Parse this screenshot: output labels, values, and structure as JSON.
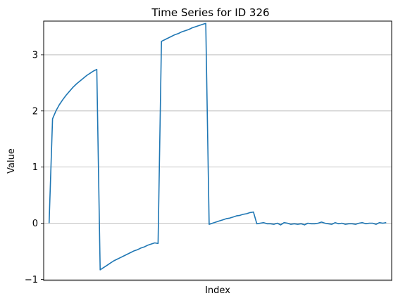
{
  "chart_data": {
    "type": "line",
    "title": "Time Series for ID 326",
    "xlabel": "Index",
    "ylabel": "Value",
    "xlim": [
      -1.6,
      100.6
    ],
    "ylim": [
      -1.02,
      3.6
    ],
    "yticks": [
      -1,
      0,
      1,
      2,
      3
    ],
    "ytick_labels": [
      "−1",
      "0",
      "1",
      "2",
      "3"
    ],
    "grid": "horizontal",
    "series": [
      {
        "color": "#1f77b4",
        "x": [
          0,
          1,
          2,
          3,
          4,
          5,
          6,
          7,
          8,
          9,
          10,
          11,
          12,
          13,
          14,
          15,
          16,
          17,
          18,
          19,
          20,
          21,
          22,
          23,
          24,
          25,
          26,
          27,
          28,
          29,
          30,
          31,
          32,
          33,
          34,
          35,
          36,
          37,
          38,
          39,
          40,
          41,
          42,
          43,
          44,
          45,
          46,
          47,
          48,
          49,
          50,
          51,
          52,
          53,
          54,
          55,
          56,
          57,
          58,
          59,
          60,
          61,
          62,
          63,
          64,
          65,
          66,
          67,
          68,
          69,
          70,
          71,
          72,
          73,
          74,
          75,
          76,
          77,
          78,
          79,
          80,
          81,
          82,
          83,
          84,
          85,
          86,
          87,
          88,
          89,
          90,
          91,
          92,
          93,
          94,
          95,
          96,
          97,
          98,
          99
        ],
        "y": [
          0,
          1.86,
          2.0,
          2.11,
          2.2,
          2.28,
          2.35,
          2.42,
          2.48,
          2.53,
          2.58,
          2.63,
          2.67,
          2.71,
          2.74,
          -0.83,
          -0.79,
          -0.75,
          -0.71,
          -0.67,
          -0.64,
          -0.61,
          -0.58,
          -0.55,
          -0.52,
          -0.49,
          -0.47,
          -0.44,
          -0.42,
          -0.39,
          -0.37,
          -0.35,
          -0.36,
          3.24,
          3.27,
          3.3,
          3.33,
          3.36,
          3.38,
          3.41,
          3.43,
          3.45,
          3.48,
          3.5,
          3.52,
          3.54,
          3.56,
          -0.02,
          0.0,
          0.02,
          0.04,
          0.06,
          0.08,
          0.09,
          0.11,
          0.13,
          0.14,
          0.16,
          0.17,
          0.19,
          0.2,
          -0.01,
          0.0,
          0.01,
          -0.01,
          -0.01,
          -0.02,
          0.0,
          -0.03,
          0.01,
          0.0,
          -0.02,
          -0.01,
          -0.02,
          -0.01,
          -0.03,
          0.0,
          -0.01,
          -0.01,
          0.0,
          0.02,
          0.0,
          -0.01,
          -0.02,
          0.01,
          -0.01,
          0.0,
          -0.02,
          -0.01,
          -0.01,
          -0.02,
          0.0,
          0.01,
          -0.01,
          0.0,
          0.0,
          -0.02,
          0.01,
          0.0,
          0.01
        ]
      }
    ]
  }
}
